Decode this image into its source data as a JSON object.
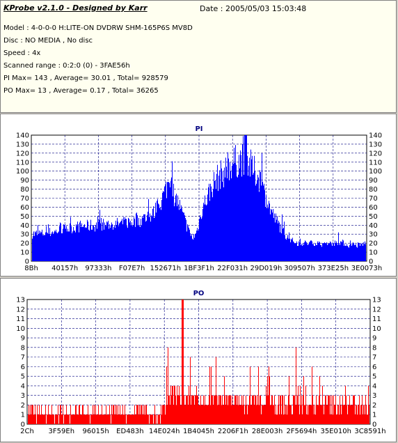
{
  "info": {
    "title": "KProbe v2.1.0 - Designed by Karr",
    "date": "Date : 2005/05/03 15:03:48",
    "lines": [
      "Model : 4-0-0-0 H:LITE-ON DVDRW SHM-165P6S MV8D",
      "Disc : NO MEDIA , No disc",
      "Speed : 4x",
      "Scanned range : 0:2:0 (0) - 3FAE56h",
      "PI Max= 143 , Average= 30.01 , Total= 928579",
      "PO Max= 13 , Average= 0.17 , Total= 36265"
    ]
  },
  "chart_data": [
    {
      "type": "area",
      "title": "PI",
      "ylim": [
        0,
        140
      ],
      "yticks": [
        0,
        10,
        20,
        30,
        40,
        50,
        60,
        70,
        80,
        90,
        100,
        110,
        120,
        130,
        140
      ],
      "xtick_labels": [
        "8Bh",
        "40157h",
        "97333h",
        "F07E7h",
        "152671h",
        "1BF3F1h",
        "22F031h",
        "29D019h",
        "309507h",
        "373E25h",
        "3E0073h"
      ],
      "color": "#0000ff",
      "profile": [
        [
          0,
          30
        ],
        [
          0.03,
          31
        ],
        [
          0.07,
          33
        ],
        [
          0.1,
          36
        ],
        [
          0.15,
          39
        ],
        [
          0.2,
          40
        ],
        [
          0.25,
          41
        ],
        [
          0.28,
          43
        ],
        [
          0.32,
          45
        ],
        [
          0.36,
          52
        ],
        [
          0.38,
          62
        ],
        [
          0.4,
          80
        ],
        [
          0.41,
          90
        ],
        [
          0.42,
          78
        ],
        [
          0.44,
          62
        ],
        [
          0.46,
          42
        ],
        [
          0.47,
          32
        ],
        [
          0.48,
          26
        ],
        [
          0.49,
          30
        ],
        [
          0.51,
          60
        ],
        [
          0.54,
          85
        ],
        [
          0.56,
          95
        ],
        [
          0.58,
          100
        ],
        [
          0.6,
          110
        ],
        [
          0.62,
          112
        ],
        [
          0.64,
          115
        ],
        [
          0.66,
          102
        ],
        [
          0.68,
          92
        ],
        [
          0.7,
          70
        ],
        [
          0.72,
          52
        ],
        [
          0.74,
          40
        ],
        [
          0.76,
          28
        ],
        [
          0.78,
          22
        ],
        [
          0.8,
          20
        ],
        [
          0.85,
          20
        ],
        [
          0.88,
          18
        ],
        [
          0.9,
          20
        ],
        [
          0.92,
          22
        ],
        [
          0.95,
          17
        ],
        [
          0.98,
          18
        ],
        [
          1,
          20
        ]
      ]
    },
    {
      "type": "bar",
      "title": "PO",
      "ylim": [
        0,
        13
      ],
      "yticks": [
        0,
        1,
        2,
        3,
        4,
        5,
        6,
        7,
        8,
        9,
        10,
        11,
        12,
        13
      ],
      "xtick_labels": [
        "2Ch",
        "3F59Eh",
        "96015h",
        "ED483h",
        "14E024h",
        "1B4045h",
        "2206F1h",
        "28E003h",
        "2F5694h",
        "35E010h",
        "3C8591h"
      ],
      "color": "#ff0000",
      "profile": [
        [
          0,
          1
        ],
        [
          0.38,
          1
        ],
        [
          0.4,
          2
        ],
        [
          0.42,
          3
        ],
        [
          0.44,
          3
        ],
        [
          0.47,
          3
        ],
        [
          0.5,
          2.5
        ],
        [
          0.55,
          2.5
        ],
        [
          0.6,
          2.5
        ],
        [
          0.65,
          2
        ],
        [
          0.7,
          2
        ],
        [
          1,
          2
        ]
      ]
    }
  ]
}
